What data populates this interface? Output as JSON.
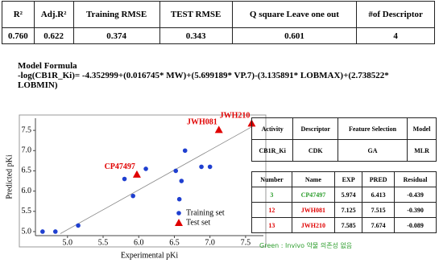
{
  "stats_table": {
    "header": [
      "R²",
      "Adj.R²",
      "Training RMSE",
      "TEST RMSE",
      "Q square Leave one out",
      "#of Descriptor"
    ],
    "rows": [
      [
        "0.760",
        "0.622",
        "0.374",
        "0.343",
        "0.601",
        "4"
      ]
    ]
  },
  "formula": {
    "title": "Model  Formula",
    "text": "-log(CB1R_Ki)=  -4.352999+(0.016745* MW)+(5.699189* VP.7)-(3.135891* LOBMAX)+(2.738522* LOBMIN)"
  },
  "chart_data": {
    "type": "scatter",
    "xlabel": "Experimental pKi",
    "ylabel": "Predicted pKi",
    "xlim": [
      4.55,
      7.75
    ],
    "ylim": [
      4.9,
      7.8
    ],
    "xticks": [
      {
        "value": 5,
        "label": "5.0"
      },
      {
        "value": 5.5,
        "label": "5.5"
      },
      {
        "value": 6,
        "label": "6.0"
      },
      {
        "value": 6.5,
        "label": "6.5"
      },
      {
        "value": 7,
        "label": "7.0"
      },
      {
        "value": 7.5,
        "label": "7.5"
      }
    ],
    "yticks": [
      {
        "value": 5,
        "label": "5.0"
      },
      {
        "value": 5.5,
        "label": "5.5"
      },
      {
        "value": 6,
        "label": "6.0"
      },
      {
        "value": 6.5,
        "label": "6.5"
      },
      {
        "value": 7,
        "label": "7.0"
      },
      {
        "value": 7.5,
        "label": "7.5"
      }
    ],
    "fit_line": {
      "x": [
        4.9,
        7.6
      ],
      "y": [
        4.95,
        7.6
      ]
    },
    "legend": "lower right",
    "series": [
      {
        "name": "Training set",
        "color": "#1f3fd0",
        "marker": "circle",
        "x": [
          4.65,
          4.83,
          5.15,
          5.8,
          5.92,
          6.1,
          6.52,
          6.57,
          6.6,
          6.65,
          6.88,
          7.0
        ],
        "values": [
          5.0,
          5.0,
          5.15,
          6.3,
          5.88,
          6.55,
          6.5,
          5.8,
          6.25,
          7.0,
          6.6,
          6.6
        ]
      },
      {
        "name": "Test set",
        "color": "#e00000",
        "marker": "triangle",
        "x": [
          5.974,
          7.125,
          7.585
        ],
        "values": [
          6.413,
          7.515,
          7.674
        ],
        "labels": [
          "CP47497",
          "JWH081",
          "JWH210"
        ]
      }
    ]
  },
  "info_table": {
    "header": [
      "Activity",
      "Descriptor",
      "Feature Selection",
      "Model"
    ],
    "rows": [
      [
        "CB1R_Ki",
        "CDK",
        "GA",
        "MLR"
      ]
    ]
  },
  "results_table": {
    "header": [
      "Number",
      "Name",
      "EXP",
      "PRED",
      "Residual"
    ],
    "rows": [
      [
        "3",
        "CP47497",
        "5.974",
        "6.413",
        "-0.439"
      ],
      [
        "12",
        "JWH081",
        "7.125",
        "7.515",
        "-0.390"
      ],
      [
        "13",
        "JWH210",
        "7.585",
        "7.674",
        "-0.089"
      ]
    ],
    "row_colors": [
      "#2e9e2e",
      "#e00000",
      "#e00000"
    ]
  },
  "note": "Green : Invivo 약물 의존성 없음"
}
